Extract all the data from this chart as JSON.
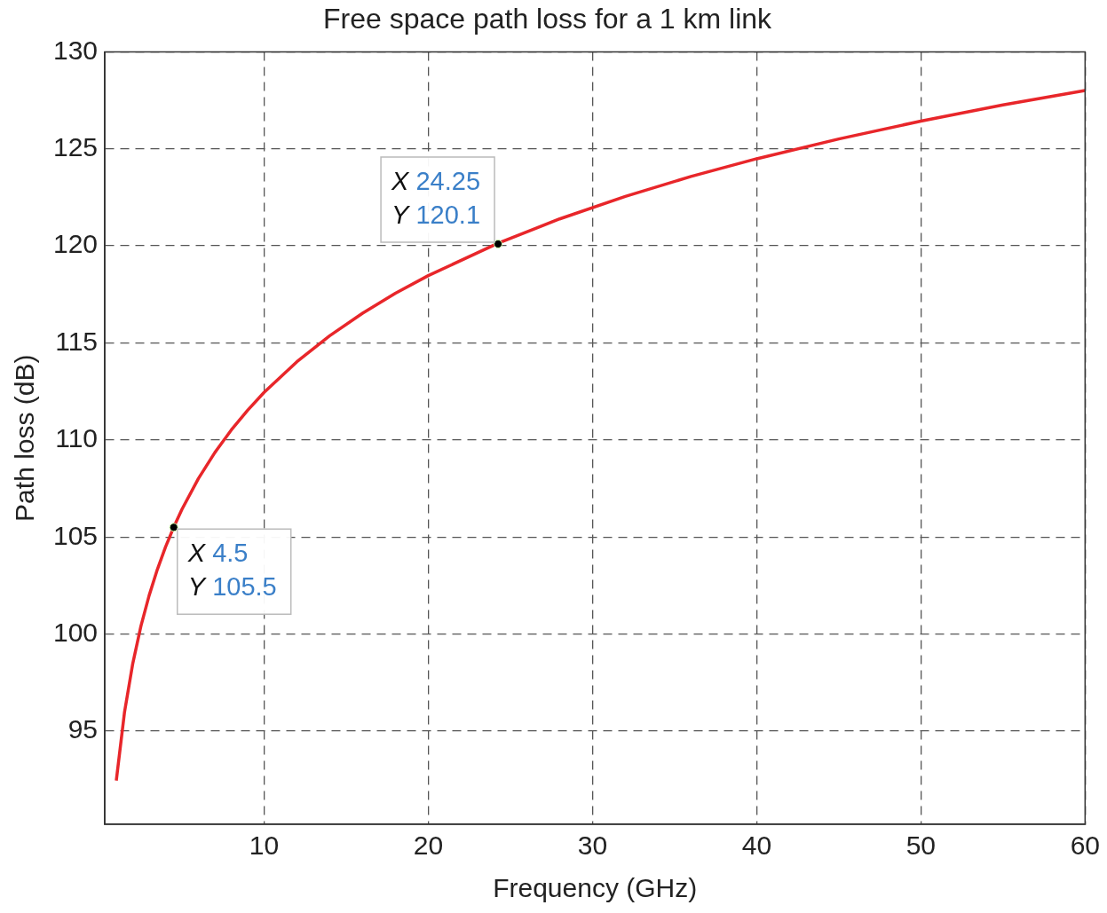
{
  "chart_data": {
    "type": "line",
    "title": "Free space path loss for a 1 km link",
    "xlabel": "Frequency (GHz)",
    "ylabel": "Path loss (dB)",
    "x": [
      1,
      1.5,
      2,
      2.5,
      3,
      3.5,
      4,
      4.5,
      5,
      6,
      7,
      8,
      9,
      10,
      12,
      14,
      16,
      18,
      20,
      24.25,
      28,
      32,
      36,
      40,
      45,
      50,
      55,
      60
    ],
    "series": [
      {
        "color": "#e8262a",
        "values": [
          92.45,
          95.97,
          98.47,
          100.41,
          101.99,
          103.33,
          104.49,
          105.51,
          106.43,
          108.01,
          109.35,
          110.51,
          111.53,
          112.45,
          114.03,
          115.37,
          116.53,
          117.56,
          118.47,
          120.14,
          121.39,
          122.55,
          123.58,
          124.49,
          125.51,
          126.43,
          127.26,
          128.01
        ]
      }
    ],
    "xlim": [
      0.3,
      60
    ],
    "xticks": [
      10,
      20,
      30,
      40,
      50,
      60
    ],
    "ylim": [
      90.2,
      130
    ],
    "yticks": [
      95,
      100,
      105,
      110,
      115,
      120,
      125,
      130
    ],
    "grid": true,
    "legend": false,
    "marker": "none",
    "line_style": "solid",
    "annotations": [
      {
        "text": "X 4.5\nY 105.5",
        "x": 4.5,
        "y": 105.5
      },
      {
        "text": "X 24.25\nY 120.1",
        "x": 24.25,
        "y": 120.1
      }
    ]
  }
}
